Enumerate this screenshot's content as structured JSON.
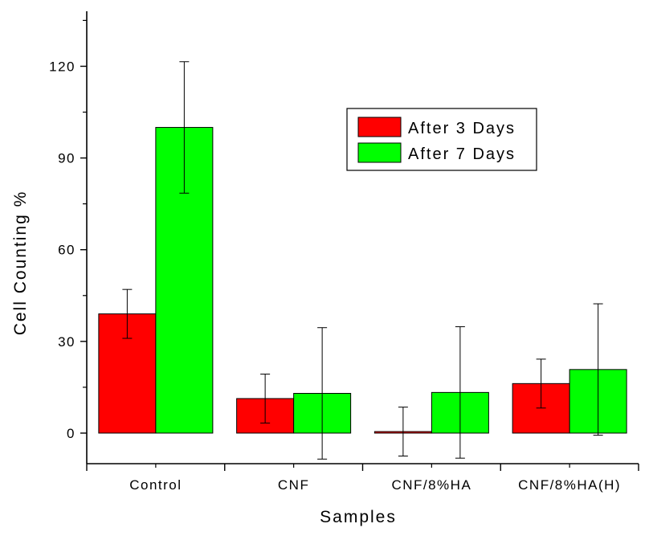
{
  "chart_data": {
    "type": "bar",
    "title": "",
    "xlabel": "Samples",
    "ylabel": "Cell Counting %",
    "categories": [
      "Control",
      "CNF",
      "CNF/8%HA",
      "CNF/8%HA(H)"
    ],
    "ylim": [
      -10,
      138
    ],
    "yticks": [
      0,
      30,
      60,
      90,
      120
    ],
    "yticks_minor": [
      -15,
      15,
      45,
      75,
      105,
      135
    ],
    "legend_position": "upper-right",
    "series": [
      {
        "name": "After 3 Days",
        "color": "#ff0000",
        "values": [
          39,
          11.3,
          0.5,
          16.2
        ],
        "errors": [
          8,
          8,
          8,
          8
        ]
      },
      {
        "name": "After 7 Days",
        "color": "#00ff00",
        "values": [
          100,
          13,
          13.3,
          20.8
        ],
        "errors": [
          21.5,
          21.5,
          21.5,
          21.5
        ]
      }
    ]
  }
}
